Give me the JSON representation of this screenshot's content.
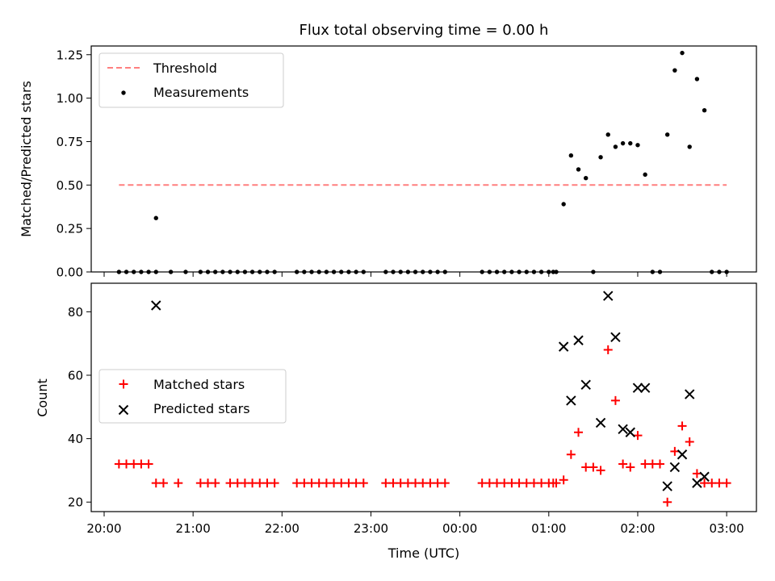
{
  "figure": {
    "title": "Flux total observing time = 0.00 h",
    "xlabel": "Time (UTC)"
  },
  "chart_data": [
    {
      "type": "scatter",
      "ylabel": "Matched/Predicted stars",
      "ylim": [
        0,
        1.3
      ],
      "yticks": [
        0,
        0.25,
        0.5,
        0.75,
        1.0,
        1.25
      ],
      "ytick_labels": [
        "0.00",
        "0.25",
        "0.50",
        "0.75",
        "1.00",
        "1.25"
      ],
      "xlim": [
        "20:00",
        "03:00"
      ],
      "grid": false,
      "legend": "upper-left",
      "colors": {
        "threshold": "#ff7f7f",
        "measurements": "#000000"
      },
      "series": [
        {
          "name": "Threshold",
          "kind": "dashed-line",
          "x": [
            "20:10",
            "03:00"
          ],
          "y": [
            0.5,
            0.5
          ]
        },
        {
          "name": "Measurements",
          "kind": "dot",
          "points": [
            [
              "20:10",
              0
            ],
            [
              "20:15",
              0
            ],
            [
              "20:20",
              0
            ],
            [
              "20:25",
              0
            ],
            [
              "20:30",
              0
            ],
            [
              "20:35",
              0
            ],
            [
              "20:35",
              0.31
            ],
            [
              "20:45",
              0
            ],
            [
              "20:55",
              0
            ],
            [
              "21:05",
              0
            ],
            [
              "21:10",
              0
            ],
            [
              "21:15",
              0
            ],
            [
              "21:20",
              0
            ],
            [
              "21:25",
              0
            ],
            [
              "21:30",
              0
            ],
            [
              "21:35",
              0
            ],
            [
              "21:40",
              0
            ],
            [
              "21:45",
              0
            ],
            [
              "21:50",
              0
            ],
            [
              "21:55",
              0
            ],
            [
              "22:10",
              0
            ],
            [
              "22:15",
              0
            ],
            [
              "22:20",
              0
            ],
            [
              "22:25",
              0
            ],
            [
              "22:30",
              0
            ],
            [
              "22:35",
              0
            ],
            [
              "22:40",
              0
            ],
            [
              "22:45",
              0
            ],
            [
              "22:50",
              0
            ],
            [
              "22:55",
              0
            ],
            [
              "23:10",
              0
            ],
            [
              "23:15",
              0
            ],
            [
              "23:20",
              0
            ],
            [
              "23:25",
              0
            ],
            [
              "23:30",
              0
            ],
            [
              "23:35",
              0
            ],
            [
              "23:40",
              0
            ],
            [
              "23:45",
              0
            ],
            [
              "23:50",
              0
            ],
            [
              "00:15",
              0
            ],
            [
              "00:20",
              0
            ],
            [
              "00:25",
              0
            ],
            [
              "00:30",
              0
            ],
            [
              "00:35",
              0
            ],
            [
              "00:40",
              0
            ],
            [
              "00:45",
              0
            ],
            [
              "00:50",
              0
            ],
            [
              "00:55",
              0
            ],
            [
              "01:00",
              0
            ],
            [
              "01:03",
              0
            ],
            [
              "01:05",
              0
            ],
            [
              "01:10",
              0.39
            ],
            [
              "01:15",
              0.67
            ],
            [
              "01:20",
              0.59
            ],
            [
              "01:25",
              0.54
            ],
            [
              "01:30",
              0
            ],
            [
              "01:35",
              0.66
            ],
            [
              "01:40",
              0.79
            ],
            [
              "01:45",
              0.72
            ],
            [
              "01:50",
              0.74
            ],
            [
              "01:55",
              0.74
            ],
            [
              "02:00",
              0.73
            ],
            [
              "02:05",
              0.56
            ],
            [
              "02:10",
              0
            ],
            [
              "02:15",
              0
            ],
            [
              "02:20",
              0.79
            ],
            [
              "02:25",
              1.16
            ],
            [
              "02:30",
              1.26
            ],
            [
              "02:35",
              0.72
            ],
            [
              "02:40",
              1.11
            ],
            [
              "02:45",
              0.93
            ],
            [
              "02:50",
              0
            ],
            [
              "02:55",
              0
            ],
            [
              "03:00",
              0
            ]
          ]
        }
      ]
    },
    {
      "type": "scatter",
      "ylabel": "Count",
      "ylim": [
        17,
        89
      ],
      "yticks": [
        20,
        40,
        60,
        80
      ],
      "ytick_labels": [
        "20",
        "40",
        "60",
        "80"
      ],
      "xlim": [
        "20:00",
        "03:00"
      ],
      "xticks": [
        "20:00",
        "21:00",
        "22:00",
        "23:00",
        "00:00",
        "01:00",
        "02:00",
        "03:00"
      ],
      "grid": false,
      "legend": "center-left",
      "colors": {
        "matched": "#ff0000",
        "predicted": "#000000"
      },
      "series": [
        {
          "name": "Matched stars",
          "kind": "plus",
          "points": [
            [
              "20:10",
              32
            ],
            [
              "20:15",
              32
            ],
            [
              "20:20",
              32
            ],
            [
              "20:25",
              32
            ],
            [
              "20:30",
              32
            ],
            [
              "20:35",
              26
            ],
            [
              "20:40",
              26
            ],
            [
              "20:50",
              26
            ],
            [
              "21:05",
              26
            ],
            [
              "21:10",
              26
            ],
            [
              "21:15",
              26
            ],
            [
              "21:25",
              26
            ],
            [
              "21:30",
              26
            ],
            [
              "21:35",
              26
            ],
            [
              "21:40",
              26
            ],
            [
              "21:45",
              26
            ],
            [
              "21:50",
              26
            ],
            [
              "21:55",
              26
            ],
            [
              "22:10",
              26
            ],
            [
              "22:15",
              26
            ],
            [
              "22:20",
              26
            ],
            [
              "22:25",
              26
            ],
            [
              "22:30",
              26
            ],
            [
              "22:35",
              26
            ],
            [
              "22:40",
              26
            ],
            [
              "22:45",
              26
            ],
            [
              "22:50",
              26
            ],
            [
              "22:55",
              26
            ],
            [
              "23:10",
              26
            ],
            [
              "23:15",
              26
            ],
            [
              "23:20",
              26
            ],
            [
              "23:25",
              26
            ],
            [
              "23:30",
              26
            ],
            [
              "23:35",
              26
            ],
            [
              "23:40",
              26
            ],
            [
              "23:45",
              26
            ],
            [
              "23:50",
              26
            ],
            [
              "00:15",
              26
            ],
            [
              "00:20",
              26
            ],
            [
              "00:25",
              26
            ],
            [
              "00:30",
              26
            ],
            [
              "00:35",
              26
            ],
            [
              "00:40",
              26
            ],
            [
              "00:45",
              26
            ],
            [
              "00:50",
              26
            ],
            [
              "00:55",
              26
            ],
            [
              "01:00",
              26
            ],
            [
              "01:03",
              26
            ],
            [
              "01:05",
              26
            ],
            [
              "01:10",
              27
            ],
            [
              "01:15",
              35
            ],
            [
              "01:20",
              42
            ],
            [
              "01:25",
              31
            ],
            [
              "01:30",
              31
            ],
            [
              "01:35",
              30
            ],
            [
              "01:40",
              68
            ],
            [
              "01:45",
              52
            ],
            [
              "01:50",
              32
            ],
            [
              "01:55",
              31
            ],
            [
              "02:00",
              41
            ],
            [
              "02:05",
              32
            ],
            [
              "02:10",
              32
            ],
            [
              "02:15",
              32
            ],
            [
              "02:20",
              20
            ],
            [
              "02:25",
              36
            ],
            [
              "02:30",
              44
            ],
            [
              "02:35",
              39
            ],
            [
              "02:40",
              29
            ],
            [
              "02:45",
              26
            ],
            [
              "02:50",
              26
            ],
            [
              "02:55",
              26
            ],
            [
              "03:00",
              26
            ]
          ]
        },
        {
          "name": "Predicted stars",
          "kind": "x",
          "points": [
            [
              "20:35",
              82
            ],
            [
              "01:10",
              69
            ],
            [
              "01:15",
              52
            ],
            [
              "01:20",
              71
            ],
            [
              "01:25",
              57
            ],
            [
              "01:35",
              45
            ],
            [
              "01:40",
              85
            ],
            [
              "01:45",
              72
            ],
            [
              "01:50",
              43
            ],
            [
              "01:55",
              42
            ],
            [
              "02:00",
              56
            ],
            [
              "02:05",
              56
            ],
            [
              "02:20",
              25
            ],
            [
              "02:25",
              31
            ],
            [
              "02:30",
              35
            ],
            [
              "02:35",
              54
            ],
            [
              "02:40",
              26
            ],
            [
              "02:45",
              28
            ]
          ]
        }
      ]
    }
  ]
}
